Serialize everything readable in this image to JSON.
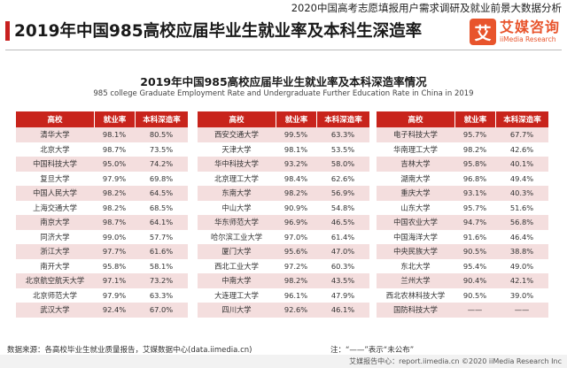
{
  "header": {
    "top_text": "2020中国高考志愿填报用户需求调研及就业前景大数据分析",
    "main_title": "2019年中国985高校应届毕业生就业率及本科生深造率",
    "brand_logo_char": "艾",
    "brand_name": "艾媒咨询",
    "brand_en": "iiMedia Research"
  },
  "colors": {
    "accent": "#c8241c",
    "row_shade": "#f4dede",
    "brand": "#e8542c"
  },
  "chart_data": {
    "type": "table",
    "title": "2019年中国985高校应届毕业生就业率及本科深造率情况",
    "subtitle": "985 college Graduate Employment Rate and Undergraduate Further Education Rate in China in 2019",
    "columns": [
      "高校",
      "就业率",
      "本科深造率"
    ],
    "tables": [
      {
        "rows": [
          [
            "清华大学",
            "98.1%",
            "80.5%"
          ],
          [
            "北京大学",
            "98.7%",
            "73.5%"
          ],
          [
            "中国科技大学",
            "95.0%",
            "74.2%"
          ],
          [
            "复旦大学",
            "97.9%",
            "69.8%"
          ],
          [
            "中国人民大学",
            "98.2%",
            "64.5%"
          ],
          [
            "上海交通大学",
            "98.2%",
            "68.5%"
          ],
          [
            "南京大学",
            "98.7%",
            "64.1%"
          ],
          [
            "同济大学",
            "99.0%",
            "57.7%"
          ],
          [
            "浙江大学",
            "97.7%",
            "61.6%"
          ],
          [
            "南开大学",
            "95.8%",
            "58.1%"
          ],
          [
            "北京航空航天大学",
            "97.1%",
            "73.2%"
          ],
          [
            "北京师范大学",
            "97.9%",
            "63.3%"
          ],
          [
            "武汉大学",
            "92.4%",
            "67.0%"
          ]
        ]
      },
      {
        "rows": [
          [
            "西安交通大学",
            "99.5%",
            "63.3%"
          ],
          [
            "天津大学",
            "98.1%",
            "53.5%"
          ],
          [
            "华中科技大学",
            "93.2%",
            "58.0%"
          ],
          [
            "北京理工大学",
            "98.4%",
            "62.6%"
          ],
          [
            "东南大学",
            "98.2%",
            "56.9%"
          ],
          [
            "中山大学",
            "90.9%",
            "54.8%"
          ],
          [
            "华东师范大学",
            "96.9%",
            "46.5%"
          ],
          [
            "哈尔滨工业大学",
            "97.0%",
            "61.4%"
          ],
          [
            "厦门大学",
            "95.6%",
            "47.0%"
          ],
          [
            "西北工业大学",
            "97.2%",
            "60.3%"
          ],
          [
            "中南大学",
            "98.2%",
            "43.5%"
          ],
          [
            "大连理工大学",
            "96.1%",
            "47.9%"
          ],
          [
            "四川大学",
            "92.6%",
            "46.1%"
          ]
        ]
      },
      {
        "rows": [
          [
            "电子科技大学",
            "95.7%",
            "67.7%"
          ],
          [
            "华南理工大学",
            "98.2%",
            "42.6%"
          ],
          [
            "吉林大学",
            "95.8%",
            "40.1%"
          ],
          [
            "湖南大学",
            "96.8%",
            "49.4%"
          ],
          [
            "重庆大学",
            "93.1%",
            "40.3%"
          ],
          [
            "山东大学",
            "95.7%",
            "51.6%"
          ],
          [
            "中国农业大学",
            "94.7%",
            "56.8%"
          ],
          [
            "中国海洋大学",
            "91.6%",
            "46.4%"
          ],
          [
            "中央民族大学",
            "90.5%",
            "38.8%"
          ],
          [
            "东北大学",
            "95.4%",
            "49.0%"
          ],
          [
            "兰州大学",
            "90.4%",
            "42.1%"
          ],
          [
            "西北农林科技大学",
            "90.5%",
            "39.0%"
          ],
          [
            "国防科技大学",
            "——",
            "——"
          ]
        ]
      }
    ]
  },
  "footer": {
    "source": "数据来源：各高校毕业生就业质量报告，艾媒数据中心(data.iimedia.cn)",
    "note": "注：“——”表示“未公布”",
    "right": "艾媒报告中心：report.iimedia.cn ©2020 iiMedia Research Inc"
  }
}
